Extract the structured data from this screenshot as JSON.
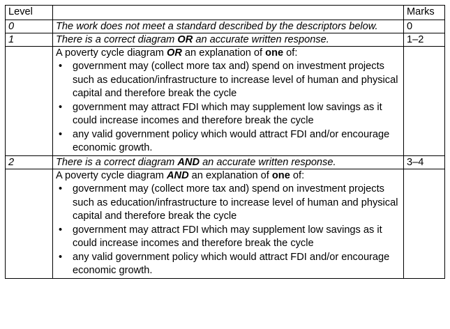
{
  "table": {
    "headers": {
      "level": "Level",
      "descriptor": "",
      "marks": "Marks"
    },
    "rows": [
      {
        "level": "0",
        "descriptor": "The work does not meet a standard described by the descriptors below.",
        "marks": "0"
      },
      {
        "level": "1",
        "descriptor": {
          "pre": "There is a correct diagram ",
          "key": "OR",
          "post": " an accurate written response."
        },
        "marks": "1–2",
        "detail": {
          "intro": {
            "pre": "A poverty cycle diagram ",
            "key": "OR",
            "mid": " an explanation of ",
            "key2": "one",
            "post": " of:"
          },
          "bullets": [
            "government may (collect more tax and) spend on investment projects such as education/infrastructure to increase level of human and physical capital and therefore break the cycle",
            "government may attract FDI which may supplement low savings as it could increase incomes and therefore break the cycle",
            "any valid government policy which would attract FDI and/or encourage economic growth."
          ]
        }
      },
      {
        "level": "2",
        "descriptor": {
          "pre": "There is a correct diagram ",
          "key": "AND",
          "post": " an accurate written response."
        },
        "marks": "3–4",
        "detail": {
          "intro": {
            "pre": "A poverty cycle diagram ",
            "key": "AND",
            "mid": " an explanation of ",
            "key2": "one",
            "post": " of:"
          },
          "bullets": [
            "government may (collect more tax and) spend on investment projects such as education/infrastructure to increase level of human and physical capital and therefore break the cycle",
            "government may attract FDI which may supplement low savings as it could increase incomes and therefore break the cycle",
            "any valid government policy which would attract FDI and/or encourage economic growth."
          ]
        }
      }
    ]
  }
}
